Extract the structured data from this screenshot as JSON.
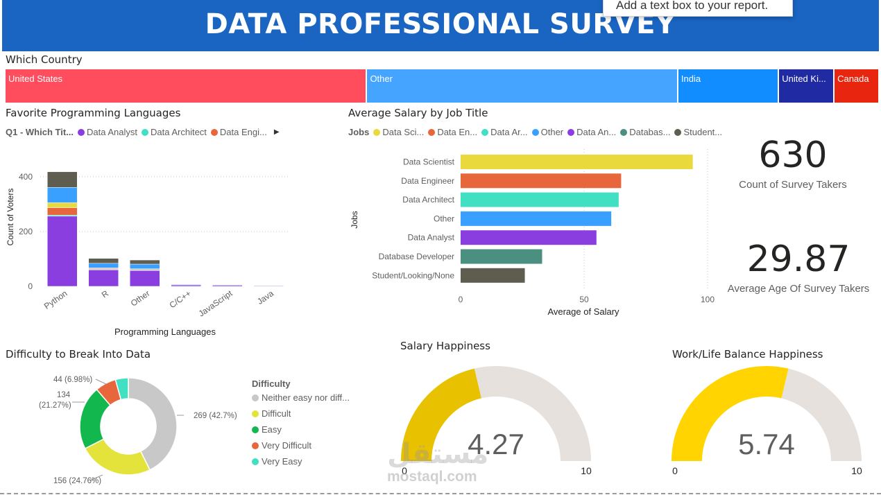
{
  "header": {
    "title": "DATA PROFESSIONAL SURVEY",
    "tooltip": "Add a text box to your report."
  },
  "country": {
    "title": "Which Country",
    "cells": [
      {
        "label": "United States",
        "color": "#ff4d5e",
        "share": 0.4145
      },
      {
        "label": "Other",
        "color": "#44a4ff",
        "share": 0.3565
      },
      {
        "label": "India",
        "color": "#118dff",
        "share": 0.1155
      },
      {
        "label": "United Ki...",
        "color": "#1f2aa3",
        "share": 0.0635
      },
      {
        "label": "Canada",
        "color": "#e8260f",
        "share": 0.05
      }
    ]
  },
  "languages": {
    "title": "Favorite Programming Languages",
    "legend_title": "Q1 - Which Tit...",
    "legend": [
      {
        "label": "Data Analyst",
        "color": "#8a3ee0"
      },
      {
        "label": "Data Architect",
        "color": "#41e0c3"
      },
      {
        "label": "Data Engi...",
        "color": "#e8663c"
      }
    ],
    "legend_arrow": "▶",
    "chart_data": {
      "type": "bar",
      "stacked": true,
      "categories": [
        "Python",
        "R",
        "Other",
        "C/C++",
        "JavaScript",
        "Java"
      ],
      "series": [
        {
          "name": "Data Analyst",
          "color": "#8a3ee0",
          "values": [
            256,
            60,
            58,
            5,
            4,
            2
          ]
        },
        {
          "name": "Data Architect",
          "color": "#41e0c3",
          "values": [
            4,
            2,
            2,
            0,
            0,
            0
          ]
        },
        {
          "name": "Data Engi...",
          "color": "#e8663c",
          "values": [
            27,
            3,
            3,
            1,
            0,
            0
          ]
        },
        {
          "color": "#e9d93c",
          "values": [
            18,
            2,
            1,
            0,
            0,
            0
          ]
        },
        {
          "color": "#3aa0ff",
          "values": [
            56,
            17,
            17,
            2,
            2,
            1
          ]
        },
        {
          "color": "#5f5c50",
          "values": [
            57,
            18,
            15,
            1,
            1,
            0
          ]
        }
      ],
      "xlabel": "Programming Languages",
      "ylabel": "Count of Voters",
      "yticks": [
        0,
        200,
        400
      ],
      "ylim": [
        0,
        450
      ]
    }
  },
  "salary": {
    "title": "Average Salary by Job Title",
    "legend_title": "Jobs",
    "legend": [
      {
        "label": "Data Sci...",
        "color": "#e9d93c"
      },
      {
        "label": "Data En...",
        "color": "#e8663c"
      },
      {
        "label": "Data Ar...",
        "color": "#41e0c3"
      },
      {
        "label": "Other",
        "color": "#3aa0ff"
      },
      {
        "label": "Data An...",
        "color": "#8a3ee0"
      },
      {
        "label": "Databas...",
        "color": "#4a8f80"
      },
      {
        "label": "Student...",
        "color": "#5f5c50"
      }
    ],
    "chart_data": {
      "type": "bar",
      "orientation": "horizontal",
      "categories": [
        "Data Scientist",
        "Data Engineer",
        "Data Architect",
        "Other",
        "Data Analyst",
        "Database Developer",
        "Student/Looking/None"
      ],
      "values": [
        94,
        65,
        64,
        61,
        55,
        33,
        26
      ],
      "colors": [
        "#e9d93c",
        "#e8663c",
        "#41e0c3",
        "#3aa0ff",
        "#8a3ee0",
        "#4a8f80",
        "#5f5c50"
      ],
      "xlabel": "Average of Salary",
      "ylabel": "Jobs",
      "xticks": [
        0,
        50,
        100
      ],
      "xlim": [
        0,
        100
      ]
    }
  },
  "cards": {
    "count_value": "630",
    "count_label": "Count of Survey Takers",
    "age_value": "29.87",
    "age_label": "Average Age Of Survey Takers"
  },
  "difficulty": {
    "title": "Difficulty to Break Into Data",
    "legend_title": "Difficulty",
    "chart_data": {
      "type": "pie",
      "donut": true,
      "slices": [
        {
          "label": "Neither easy nor diff...",
          "value": 269,
          "data_label": "269 (42.7%)",
          "color": "#c8c8c8"
        },
        {
          "label": "Difficult",
          "value": 156,
          "data_label": "156 (24.76%)",
          "color": "#e3e33b"
        },
        {
          "label": "Easy",
          "value": 134,
          "data_label": "134",
          "data_label_2": "(21.27%)",
          "color": "#12b84e"
        },
        {
          "label": "Very Difficult",
          "value": 44,
          "data_label": "44 (6.98%)",
          "color": "#e8663c"
        },
        {
          "label": "Very Easy",
          "value": 27,
          "color": "#41e0c3"
        }
      ]
    }
  },
  "salary_happiness": {
    "title": "Salary Happiness",
    "chart_data": {
      "type": "gauge",
      "value": 4.27,
      "min": 0,
      "max": 10,
      "value_label": "4.27",
      "min_label": "0",
      "max_label": "10",
      "fill_color": "#e8c200",
      "track_color": "#e6e1dc"
    }
  },
  "worklife_happiness": {
    "title": "Work/Life Balance Happiness",
    "chart_data": {
      "type": "gauge",
      "value": 5.74,
      "min": 0,
      "max": 10,
      "value_label": "5.74",
      "min_label": "0",
      "max_label": "10",
      "fill_color": "#ffd400",
      "track_color": "#e6e1dc"
    }
  },
  "watermark": {
    "arabic": "مستقل",
    "latin": "mostaql.com"
  }
}
